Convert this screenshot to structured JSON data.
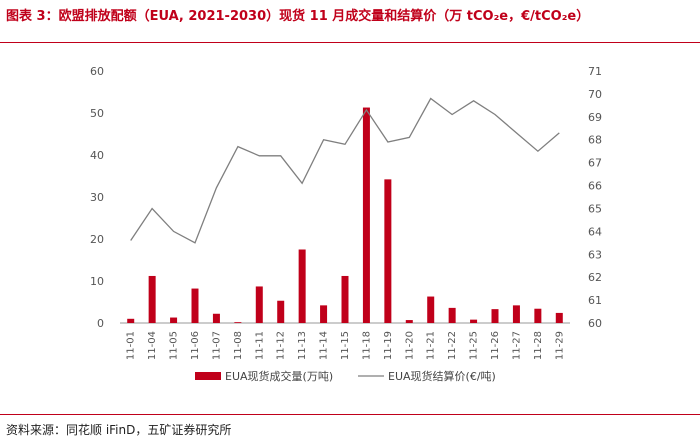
{
  "figure": {
    "title": "图表 3：欧盟排放配额（EUA, 2021-2030）现货 11 月成交量和结算价（万 tCO₂e，€/tCO₂e）",
    "source": "资料来源：同花顺 iFinD，五矿证券研究所",
    "accent_color": "#c0001a"
  },
  "chart_data": {
    "type": "bar",
    "title": "欧盟排放配额（EUA, 2021-2030）现货 11 月成交量和结算价",
    "categories": [
      "11-01",
      "11-04",
      "11-05",
      "11-06",
      "11-07",
      "11-08",
      "11-11",
      "11-12",
      "11-13",
      "11-14",
      "11-15",
      "11-18",
      "11-19",
      "11-20",
      "11-21",
      "11-22",
      "11-25",
      "11-26",
      "11-27",
      "11-28",
      "11-29"
    ],
    "series": [
      {
        "name": "EUA现货成交量(万吨)",
        "type": "bar",
        "axis": "left",
        "color": "#c0001a",
        "values": [
          1.0,
          11.2,
          1.3,
          8.2,
          2.2,
          0.2,
          8.7,
          5.3,
          17.5,
          4.2,
          11.2,
          51.3,
          34.2,
          0.7,
          6.3,
          3.6,
          0.8,
          3.3,
          4.2,
          3.4,
          2.4
        ]
      },
      {
        "name": "EUA现货结算价(€/吨)",
        "type": "line",
        "axis": "right",
        "color": "#7f7f7f",
        "values": [
          63.6,
          65.0,
          64.0,
          63.5,
          65.9,
          67.7,
          67.3,
          67.3,
          66.1,
          68.0,
          67.8,
          69.3,
          67.9,
          68.1,
          69.8,
          69.1,
          69.7,
          69.1,
          68.3,
          67.5,
          68.3
        ]
      }
    ],
    "y_left": {
      "ylim": [
        0,
        60
      ],
      "ticks": [
        "0",
        "10",
        "20",
        "30",
        "40",
        "50",
        "60"
      ]
    },
    "y_right": {
      "ylim": [
        60,
        71
      ],
      "ticks": [
        "60",
        "61",
        "62",
        "63",
        "64",
        "65",
        "66",
        "67",
        "68",
        "69",
        "70",
        "71"
      ]
    },
    "xlabel": "",
    "ylabel": "",
    "grid": false,
    "legend_position": "bottom"
  }
}
